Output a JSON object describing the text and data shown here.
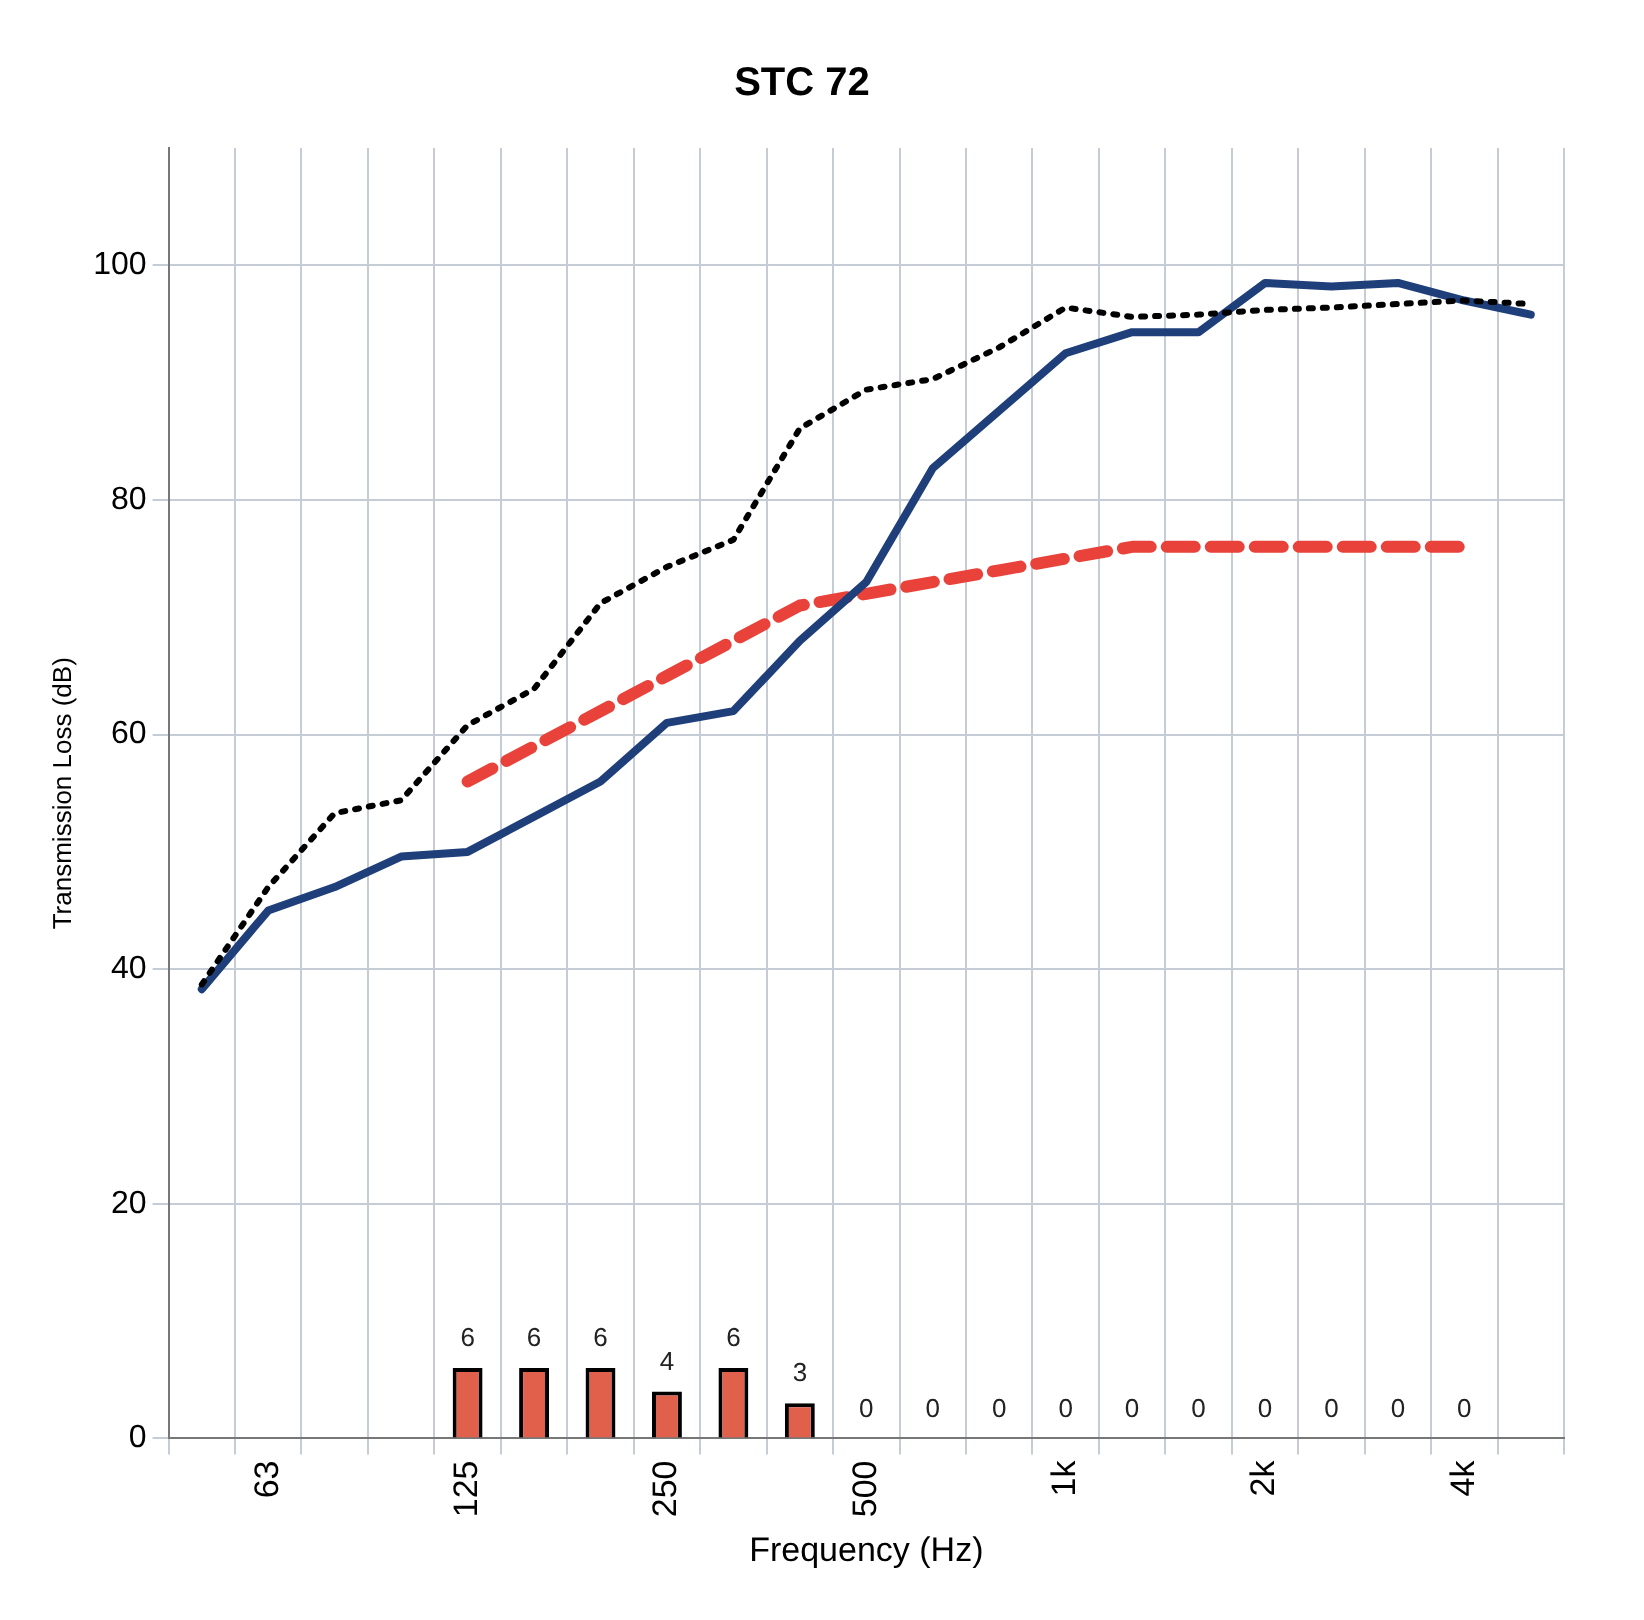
{
  "chart_data": {
    "type": "line",
    "title": "STC 72",
    "xlabel": "Frequency (Hz)",
    "ylabel": "Transmission Loss (dB)",
    "categories": [
      null,
      "63",
      null,
      null,
      "125",
      null,
      null,
      "250",
      null,
      null,
      "500",
      null,
      null,
      "1k",
      null,
      null,
      "2k",
      null,
      null,
      "4k",
      null
    ],
    "ylim": [
      0,
      110
    ],
    "yticks": [
      0,
      20,
      40,
      60,
      80,
      100
    ],
    "grid": true,
    "legend": false,
    "series": [
      {
        "type": "bar",
        "color": "#e0604c",
        "data_labels": true,
        "values": [
          null,
          null,
          null,
          null,
          6,
          6,
          6,
          4,
          6,
          3,
          0,
          0,
          0,
          0,
          0,
          0,
          0,
          0,
          0,
          0,
          null
        ]
      },
      {
        "color": "#000000",
        "line_style": "dotted",
        "values": [
          38.7,
          47,
          53.3,
          54.4,
          60.8,
          63.9,
          71.2,
          74.3,
          76.6,
          86.1,
          89.4,
          90.3,
          93,
          96.4,
          95.6,
          95.8,
          96.2,
          96.4,
          96.7,
          97,
          96.7
        ]
      },
      {
        "color": "#1f3f7a",
        "line_style": "solid",
        "values": [
          38.3,
          45,
          47,
          49.6,
          50,
          53,
          56,
          61,
          62,
          68,
          73,
          82.7,
          87.6,
          92.5,
          94.3,
          94.3,
          98.5,
          98.2,
          98.5,
          97,
          95.8
        ]
      },
      {
        "color": "#e8423a",
        "line_style": "dashed",
        "values": [
          null,
          null,
          null,
          null,
          56,
          59,
          62,
          65,
          68,
          71,
          72,
          73,
          74,
          75,
          76,
          76,
          76,
          76,
          76,
          76,
          null
        ]
      }
    ]
  }
}
